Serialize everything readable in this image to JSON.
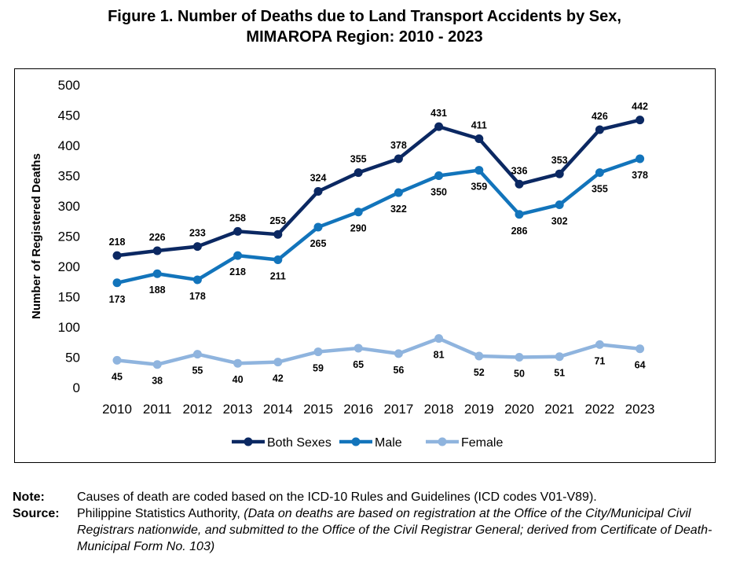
{
  "title_line1": "Figure 1. Number of Deaths due to Land Transport Accidents by Sex,",
  "title_line2": "MIMAROPA Region: 2010 - 2023",
  "note": {
    "label": "Note:",
    "text": "Causes of death are coded based on the ICD-10 Rules and Guidelines (ICD codes V01-V89)."
  },
  "source": {
    "label": "Source:",
    "text_plain": "Philippine Statistics Authority, ",
    "text_italic": "(Data on deaths are based on registration at the Office of the City/Municipal Civil Registrars nationwide, and submitted to the Office of the Civil Registrar General; derived from Certificate of Death-Municipal Form No. 103)"
  },
  "chart_data": {
    "type": "line",
    "title": "",
    "xlabel": "",
    "ylabel": "Number of Registered Deaths",
    "ylim": [
      0,
      500
    ],
    "yticks": [
      0,
      50,
      100,
      150,
      200,
      250,
      300,
      350,
      400,
      450,
      500
    ],
    "grid": false,
    "legend_position": "bottom",
    "categories": [
      "2010",
      "2011",
      "2012",
      "2013",
      "2014",
      "2015",
      "2016",
      "2017",
      "2018",
      "2019",
      "2020",
      "2021",
      "2022",
      "2023"
    ],
    "series": [
      {
        "name": "Both Sexes",
        "color": "#0b2862",
        "label_position": "above",
        "values": [
          218,
          226,
          233,
          258,
          253,
          324,
          355,
          378,
          431,
          411,
          336,
          353,
          426,
          442
        ]
      },
      {
        "name": "Male",
        "color": "#1274bb",
        "label_position": "below",
        "values": [
          173,
          188,
          178,
          218,
          211,
          265,
          290,
          322,
          350,
          359,
          286,
          302,
          355,
          378
        ]
      },
      {
        "name": "Female",
        "color": "#8fb4de",
        "label_position": "below",
        "values": [
          45,
          38,
          55,
          40,
          42,
          59,
          65,
          56,
          81,
          52,
          50,
          51,
          71,
          64
        ]
      }
    ]
  }
}
